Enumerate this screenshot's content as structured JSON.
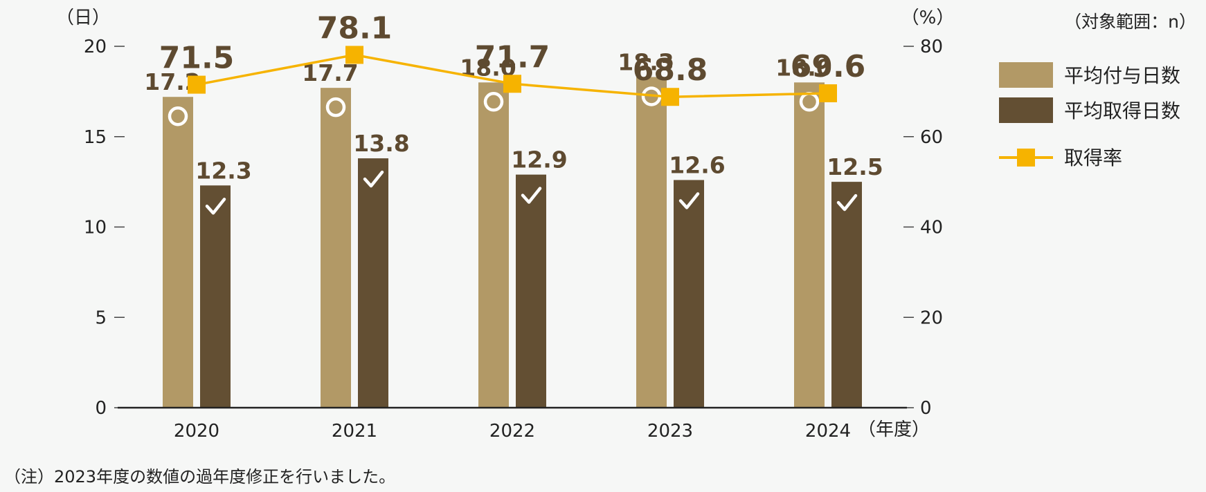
{
  "scope_text": "（対象範囲：n）",
  "note": "（注）2023年度の数値の過年度修正を行いました。",
  "colors": {
    "granted": "#b29966",
    "taken": "#634f33",
    "rate": "#f6b300",
    "label": "#5e4a30"
  },
  "legend": {
    "granted": "平均付与日数",
    "taken": "平均取得日数",
    "rate": "取得率"
  },
  "chart_data": {
    "type": "bar",
    "categories": [
      "2020",
      "2021",
      "2022",
      "2023",
      "2024"
    ],
    "x_unit": "（年度）",
    "y_left": {
      "unit": "（日）",
      "range": [
        0,
        20
      ],
      "ticks": [
        0,
        5,
        10,
        15,
        20
      ]
    },
    "y_right": {
      "unit": "（%）",
      "range": [
        0,
        80
      ],
      "ticks": [
        0,
        20,
        40,
        60,
        80
      ]
    },
    "series": [
      {
        "name": "平均付与日数",
        "type": "bar",
        "axis": "left",
        "values": [
          17.2,
          17.7,
          18.0,
          18.3,
          18.0
        ],
        "labels": [
          "17.2",
          "17.7",
          "18.0",
          "18.3",
          "18.0"
        ],
        "marker": "circle"
      },
      {
        "name": "平均取得日数",
        "type": "bar",
        "axis": "left",
        "values": [
          12.3,
          13.8,
          12.9,
          12.6,
          12.5
        ],
        "labels": [
          "12.3",
          "13.8",
          "12.9",
          "12.6",
          "12.5"
        ],
        "marker": "check"
      },
      {
        "name": "取得率",
        "type": "line",
        "axis": "right",
        "values": [
          71.5,
          78.1,
          71.7,
          68.8,
          69.6
        ],
        "labels": [
          "71.5",
          "78.1",
          "71.7",
          "68.8",
          "69.6"
        ]
      }
    ],
    "legend_position": "right",
    "grid": false
  }
}
